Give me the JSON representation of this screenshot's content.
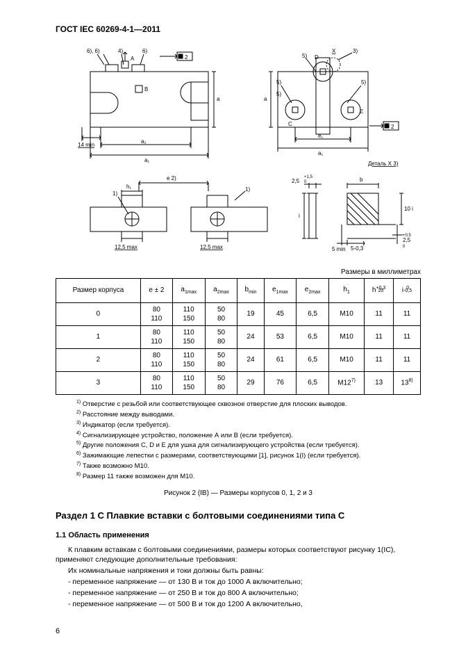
{
  "header": "ГОСТ IEC 60269-4-1—2011",
  "page_number": "6",
  "units_label": "Размеры в миллиметрах",
  "diagram": {
    "labels": {
      "n6_6": "6), 6)",
      "n4": "4)",
      "n6": "6)",
      "n2": "2",
      "A": "A",
      "B": "B",
      "na": "a",
      "n14min": "14 min",
      "a1": "a₁",
      "a2": "a₂",
      "e2": "e 2)",
      "n1": "1)",
      "h1": "h₁",
      "n12_5": "12,5 max",
      "X": "X",
      "n3": "3)",
      "D": "D",
      "n5": "5)",
      "C": "C",
      "E": "E",
      "e1": "e₁",
      "detail": "Деталь X 3)",
      "tol1": "2,5",
      "tol1s": "+1,5",
      "tol1s2": "0",
      "i": "i",
      "b": "b",
      "i10": "10 i",
      "n5min": "5 min",
      "n5_03": "5-0,3",
      "n25": "2,5",
      "n25s": "+0,5",
      "n25s2": "0"
    },
    "stroke": "#000000",
    "linewidth": 1,
    "font_size": 8
  },
  "table": {
    "headers": {
      "c0": "Размер корпуса",
      "c1": "e ± 2",
      "c2_base": "a",
      "c2_sub": "1max",
      "c3_base": "a",
      "c3_sub": "2max",
      "c4_base": "b",
      "c4_sub": "min",
      "c5_base": "e",
      "c5_sub": "1max",
      "c6_base": "e",
      "c6_sub": "2max",
      "c7_base": "h",
      "c7_sub": "1",
      "c8_base": "h",
      "c8_sup": "+0,3",
      "c8_sub": "20",
      "c9_base": "i",
      "c9_sup": "0",
      "c9_sub": "-0,5"
    },
    "rows": [
      {
        "size": "0",
        "e": [
          "80",
          "110"
        ],
        "a1": [
          "110",
          "150"
        ],
        "a2": [
          "50",
          "80"
        ],
        "b": "19",
        "e1": "45",
        "e2": "6,5",
        "h1": "M10",
        "h20": "11",
        "i": "11"
      },
      {
        "size": "1",
        "e": [
          "80",
          "110"
        ],
        "a1": [
          "110",
          "150"
        ],
        "a2": [
          "50",
          "80"
        ],
        "b": "24",
        "e1": "53",
        "e2": "6,5",
        "h1": "M10",
        "h20": "11",
        "i": "11"
      },
      {
        "size": "2",
        "e": [
          "80",
          "110"
        ],
        "a1": [
          "110",
          "150"
        ],
        "a2": [
          "50",
          "80"
        ],
        "b": "24",
        "e1": "61",
        "e2": "6,5",
        "h1": "M10",
        "h20": "11",
        "i": "11"
      },
      {
        "size": "3",
        "e": [
          "80",
          "110"
        ],
        "a1": [
          "110",
          "150"
        ],
        "a2": [
          "50",
          "80"
        ],
        "b": "29",
        "e1": "76",
        "e2": "6,5",
        "h1": "M12",
        "h1_sup": "7)",
        "h20": "13",
        "i": "13",
        "i_sup": "8)"
      }
    ]
  },
  "notes": [
    "1) Отверстие с резьбой или соответствующее сквозное отверстие для плоских выводов.",
    "2) Расстояние между выводами.",
    "3) Индикатор (если требуется).",
    "4) Сигнализирующее устройство, положение А или В (если требуется).",
    "5) Другие положения C, D и E для ушка для сигнализирующего устройства (если требуется).",
    "6) Зажимающие лепестки с размерами, соответствующими [1], рисунок 1(I) (если требуется).",
    "7) Также возможно M10.",
    "8) Размер 11 также возможен для M10."
  ],
  "figure_caption": "Рисунок 2 (IB) — Размеры корпусов 0, 1, 2 и 3",
  "section": {
    "title": "Раздел 1 С  Плавкие вставки с болтовыми соединениями типа С",
    "sub": "1.1  Область применения",
    "p1": "К плавким вставкам с болтовыми соединениями, размеры которых соответствуют рисунку 1(IС), применяют следующие дополнительные требования:",
    "p2": "Их номинальные напряжения и токи должны быть равны:",
    "l1": "- переменное напряжение — от 130 В и ток до 1000 А включительно;",
    "l2": "- переменное напряжение — от 250 В и ток до 800 А включительно;",
    "l3": "- переменное напряжение — от 500 В и ток до 1200 А включительно,"
  }
}
